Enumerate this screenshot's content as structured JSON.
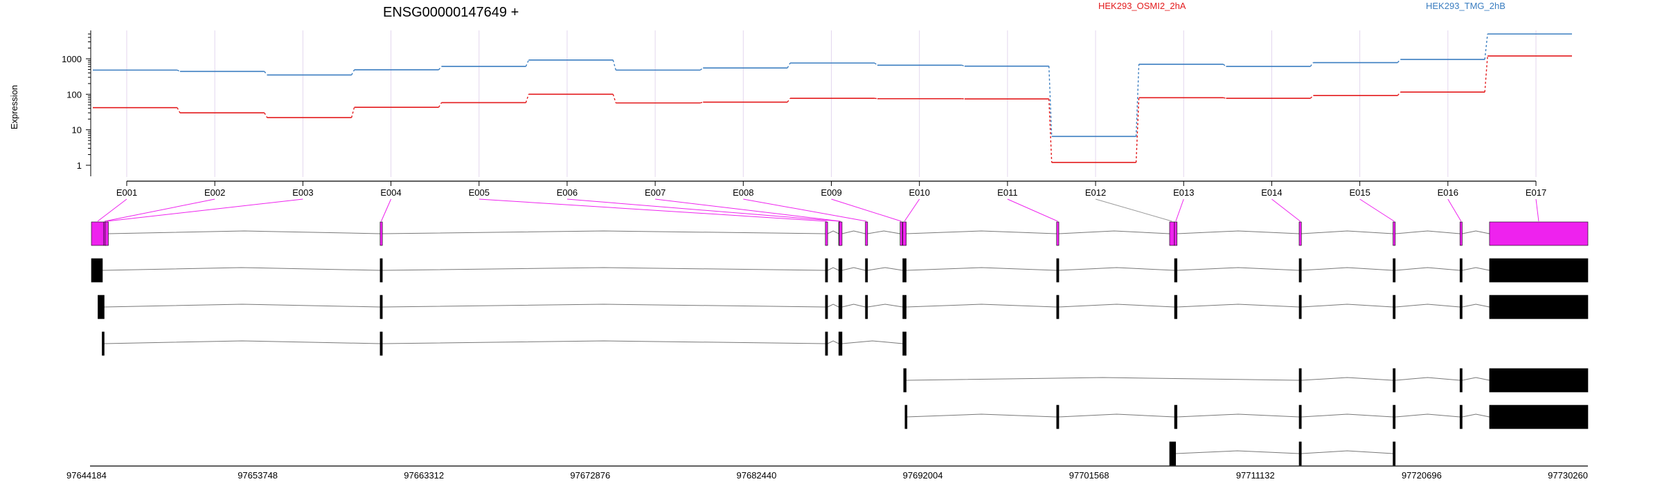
{
  "chart_data": {
    "type": "line",
    "title": "ENSG00000147649 +",
    "ylabel": "Expression",
    "yscale": "log",
    "yticks": [
      "1",
      "10",
      "100",
      "1000"
    ],
    "legend_position": "top",
    "colors": {
      "exon_highlight": "#ee22ee",
      "exon": "#000000",
      "intron": "#777777",
      "grid": "#e3d6ee"
    },
    "categories": [
      "E001",
      "E002",
      "E003",
      "E004",
      "E005",
      "E006",
      "E007",
      "E008",
      "E009",
      "E010",
      "E011",
      "E012",
      "E013",
      "E014",
      "E015",
      "E016",
      "E017"
    ],
    "series": [
      {
        "name": "HEK293_OSMI2_2hA",
        "color": "#e31a1c",
        "values": [
          42,
          30,
          22,
          43,
          58,
          100,
          57,
          60,
          77,
          75,
          74,
          1.2,
          80,
          77,
          92,
          115,
          1200
        ]
      },
      {
        "name": "HEK293_TMG_2hB",
        "color": "#3a7dc0",
        "values": [
          480,
          440,
          350,
          490,
          610,
          920,
          480,
          550,
          760,
          660,
          620,
          6.5,
          700,
          610,
          780,
          960,
          5000
        ]
      }
    ],
    "genome_axis": {
      "min": 97644184,
      "max": 97730260,
      "tick_labels": [
        "97644184",
        "97653748",
        "97663312",
        "97672876",
        "97682440",
        "97692004",
        "97701568",
        "97711132",
        "97720696",
        "97730260"
      ]
    },
    "exon_model": [
      {
        "label": "E001",
        "start": 97644184,
        "end": 97644900
      },
      {
        "label": "E002",
        "start": 97644900,
        "end": 97644980
      },
      {
        "label": "E003",
        "start": 97644980,
        "end": 97645160
      },
      {
        "label": "E004",
        "start": 97660790,
        "end": 97660920
      },
      {
        "label": "E005",
        "start": 97686400,
        "end": 97686530
      },
      {
        "label": "E006",
        "start": 97687170,
        "end": 97687300
      },
      {
        "label": "E007",
        "start": 97687190,
        "end": 97687360
      },
      {
        "label": "E008",
        "start": 97688700,
        "end": 97688830
      },
      {
        "label": "E009",
        "start": 97690700,
        "end": 97690830
      },
      {
        "label": "E010",
        "start": 97690850,
        "end": 97691050
      },
      {
        "label": "E011",
        "start": 97699700,
        "end": 97699830
      },
      {
        "label": "E012",
        "start": 97706200,
        "end": 97706480
      },
      {
        "label": "E013",
        "start": 97706480,
        "end": 97706630
      },
      {
        "label": "E014",
        "start": 97713650,
        "end": 97713780
      },
      {
        "label": "E015",
        "start": 97719050,
        "end": 97719180
      },
      {
        "label": "E016",
        "start": 97722900,
        "end": 97723030
      },
      {
        "label": "E017",
        "start": 97724600,
        "end": 97730260
      }
    ],
    "transcripts": [
      [
        [
          97644184,
          97644820
        ],
        [
          97660790,
          97660920
        ],
        [
          97686400,
          97686530
        ],
        [
          97687170,
          97687360
        ],
        [
          97688700,
          97688830
        ],
        [
          97690850,
          97691050
        ],
        [
          97699700,
          97699830
        ],
        [
          97706480,
          97706630
        ],
        [
          97713650,
          97713780
        ],
        [
          97719050,
          97719180
        ],
        [
          97722900,
          97723030
        ],
        [
          97724600,
          97730260
        ]
      ],
      [
        [
          97644560,
          97644920
        ],
        [
          97660790,
          97660920
        ],
        [
          97686400,
          97686530
        ],
        [
          97687170,
          97687360
        ],
        [
          97688700,
          97688830
        ],
        [
          97690850,
          97691050
        ],
        [
          97699700,
          97699830
        ],
        [
          97706480,
          97706630
        ],
        [
          97713650,
          97713780
        ],
        [
          97719050,
          97719180
        ],
        [
          97722900,
          97723030
        ],
        [
          97724600,
          97730260
        ]
      ],
      [
        [
          97644800,
          97644920
        ],
        [
          97660790,
          97660920
        ],
        [
          97686400,
          97686530
        ],
        [
          97687170,
          97687360
        ],
        [
          97690850,
          97691050
        ]
      ],
      [
        [
          97690900,
          97691050
        ],
        [
          97713650,
          97713780
        ],
        [
          97719050,
          97719180
        ],
        [
          97722900,
          97723030
        ],
        [
          97724600,
          97730260
        ]
      ],
      [
        [
          97690980,
          97691050
        ],
        [
          97699700,
          97699830
        ],
        [
          97706480,
          97706630
        ],
        [
          97713650,
          97713780
        ],
        [
          97719050,
          97719180
        ],
        [
          97722900,
          97723030
        ],
        [
          97724600,
          97730260
        ]
      ],
      [
        [
          97706200,
          97706550
        ],
        [
          97713650,
          97713780
        ],
        [
          97719050,
          97719180
        ]
      ]
    ]
  }
}
